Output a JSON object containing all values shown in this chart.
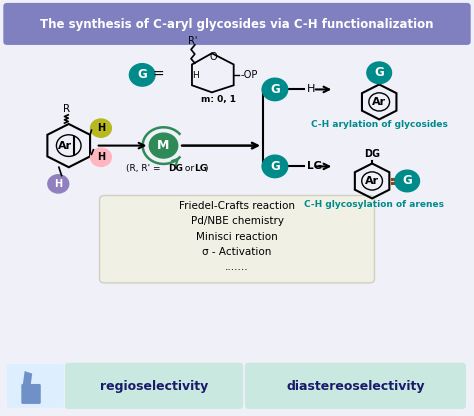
{
  "title": "The synthesis of C-aryl glycosides via C-H functionalization",
  "title_bg": "#8080C0",
  "title_color": "#FFFFFF",
  "bg_color": "#FFFFFF",
  "main_bg": "#F0F0F8",
  "teal_color": "#008B8B",
  "teal_M": "#2E8B57",
  "text_lines": [
    "Friedel-Crafts reaction",
    "Pd/NBE chemistry",
    "Minisci reaction",
    "σ - Activation",
    "......."
  ],
  "label1": "C-H arylation of glycosides",
  "label2": "C-H glycosylation of arenes",
  "footer1": "regioselectivity",
  "footer2": "diastereoselectivity",
  "footer_thumb_color": "#7090C8",
  "footer_box_color": "#C8E8E0",
  "footer_text_color": "#1A1A6A",
  "pink_color": "#FFB6C1",
  "yellow_color": "#B8B820",
  "purple_color": "#9080C0",
  "text_box_bg": "#F0F0E4",
  "text_box_border": "#D0D0C0",
  "rust_color": "#8B4513"
}
